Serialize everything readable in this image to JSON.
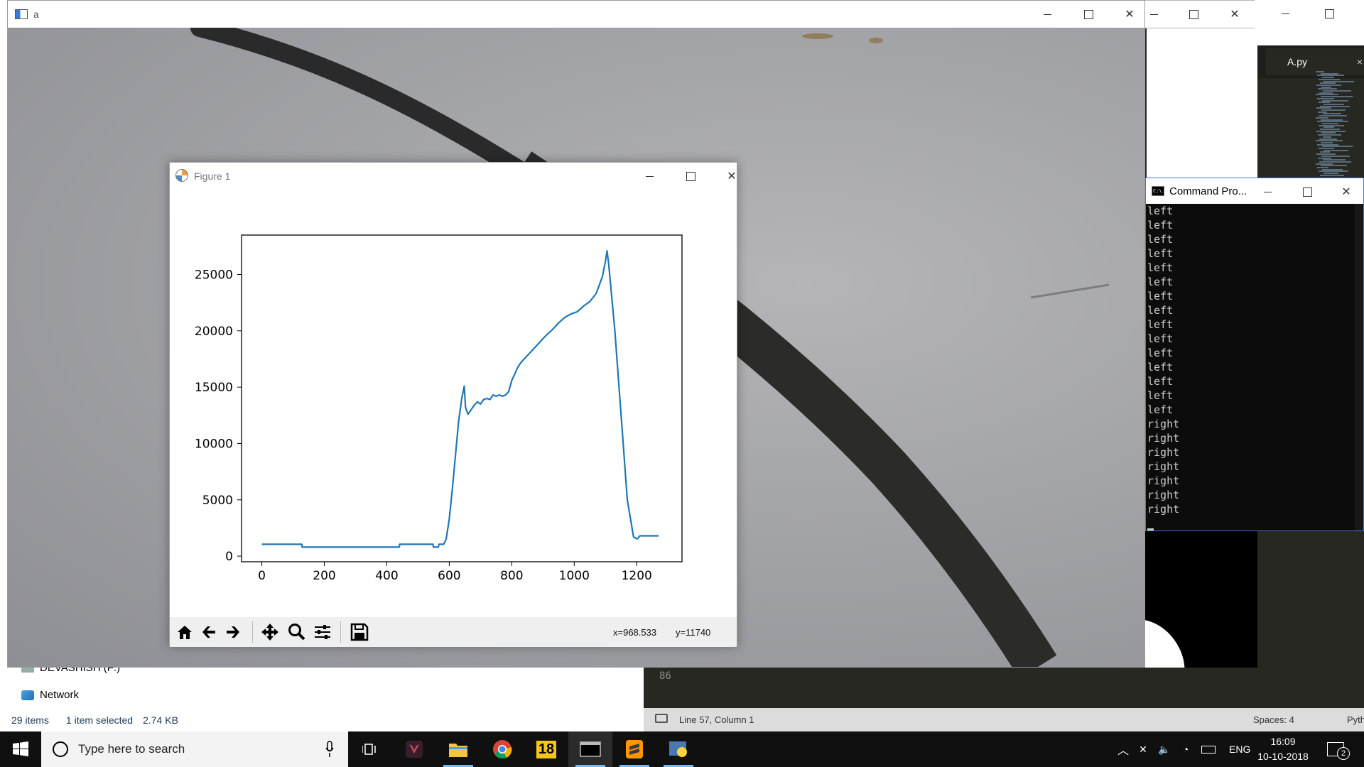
{
  "explorer": {
    "nav_partial": "DEVASHISH (F:)",
    "nav_network": "Network",
    "status_items": "29 items",
    "status_selected": "1 item selected",
    "status_size": "2.74 KB"
  },
  "editor": {
    "tab_label": "A.py",
    "line_number": "86",
    "status_position": "Line 57, Column 1",
    "status_spaces": "Spaces: 4",
    "status_syntax": "Pyth"
  },
  "camera_window": {
    "title": "a"
  },
  "figure_window": {
    "title": "Figure 1",
    "coord_x": "x=968.533",
    "coord_y": "y=11740"
  },
  "chart_data": {
    "type": "line",
    "title": "",
    "xlabel": "",
    "ylabel": "",
    "xlim": [
      -65,
      1345
    ],
    "ylim": [
      -500,
      28500
    ],
    "xticks": [
      0,
      200,
      400,
      600,
      800,
      1000,
      1200
    ],
    "yticks": [
      0,
      5000,
      10000,
      15000,
      20000,
      25000
    ],
    "grid": false,
    "color": "#1f77b4",
    "series": [
      {
        "x": [
          0,
          30,
          60,
          90,
          120,
          128,
          129,
          160,
          200,
          260,
          320,
          380,
          430,
          440,
          441,
          480,
          520,
          540,
          548,
          549,
          565,
          567,
          582,
          590,
          600,
          610,
          620,
          630,
          640,
          648,
          652,
          660,
          670,
          680,
          690,
          700,
          710,
          720,
          730,
          740,
          750,
          760,
          770,
          780,
          790,
          800,
          810,
          820,
          830,
          850,
          870,
          890,
          910,
          930,
          950,
          970,
          990,
          1010,
          1030,
          1050,
          1070,
          1090,
          1100,
          1105,
          1110,
          1130,
          1150,
          1170,
          1190,
          1200,
          1203,
          1210,
          1230,
          1250,
          1270
        ],
        "y": [
          1050,
          1050,
          1050,
          1050,
          1050,
          1050,
          800,
          800,
          800,
          800,
          800,
          800,
          800,
          800,
          1050,
          1050,
          1050,
          1050,
          1050,
          800,
          800,
          1050,
          1050,
          1500,
          3300,
          6000,
          9000,
          12000,
          14000,
          15100,
          13200,
          12600,
          13000,
          13400,
          13700,
          13500,
          13900,
          14000,
          13900,
          14300,
          14200,
          14300,
          14200,
          14300,
          14600,
          15600,
          16200,
          16800,
          17200,
          17800,
          18400,
          19000,
          19600,
          20100,
          20700,
          21200,
          21500,
          21700,
          22200,
          22600,
          23300,
          24800,
          26200,
          27100,
          26000,
          20000,
          12500,
          5000,
          1700,
          1550,
          1550,
          1800,
          1800,
          1800,
          1800
        ]
      }
    ]
  },
  "cmd_window": {
    "title": "Command Pro...",
    "lines": [
      "left",
      "left",
      "left",
      "left",
      "left",
      "left",
      "left",
      "left",
      "left",
      "left",
      "left",
      "left",
      "left",
      "left",
      "left",
      "right",
      "right",
      "right",
      "right",
      "right",
      "right",
      "right"
    ]
  },
  "taskbar": {
    "search_placeholder": "Type here to search",
    "badge_18": "18",
    "lang": "ENG",
    "time": "16:09",
    "date": "10-10-2018",
    "notif_count": "2"
  }
}
